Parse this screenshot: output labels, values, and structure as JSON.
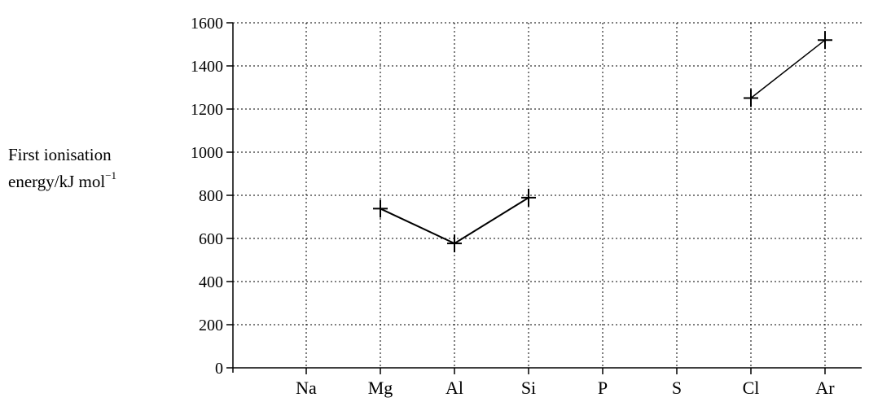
{
  "chart_data": {
    "type": "line",
    "title": "",
    "xlabel": "",
    "ylabel_line1": "First ionisation",
    "ylabel_line2": "energy/kJ mol",
    "ylabel_sup": "−1",
    "categories": [
      "Na",
      "Mg",
      "Al",
      "Si",
      "P",
      "S",
      "Cl",
      "Ar"
    ],
    "ylim": [
      0,
      1600
    ],
    "yticks": [
      0,
      200,
      400,
      600,
      800,
      1000,
      1200,
      1400,
      1600
    ],
    "grid": true,
    "series": [
      {
        "segments": [
          {
            "points": [
              {
                "category": "Mg",
                "value": 738
              },
              {
                "category": "Al",
                "value": 577
              },
              {
                "category": "Si",
                "value": 789
              }
            ]
          },
          {
            "points": [
              {
                "category": "Cl",
                "value": 1251
              },
              {
                "category": "Ar",
                "value": 1520
              }
            ]
          }
        ]
      }
    ]
  }
}
